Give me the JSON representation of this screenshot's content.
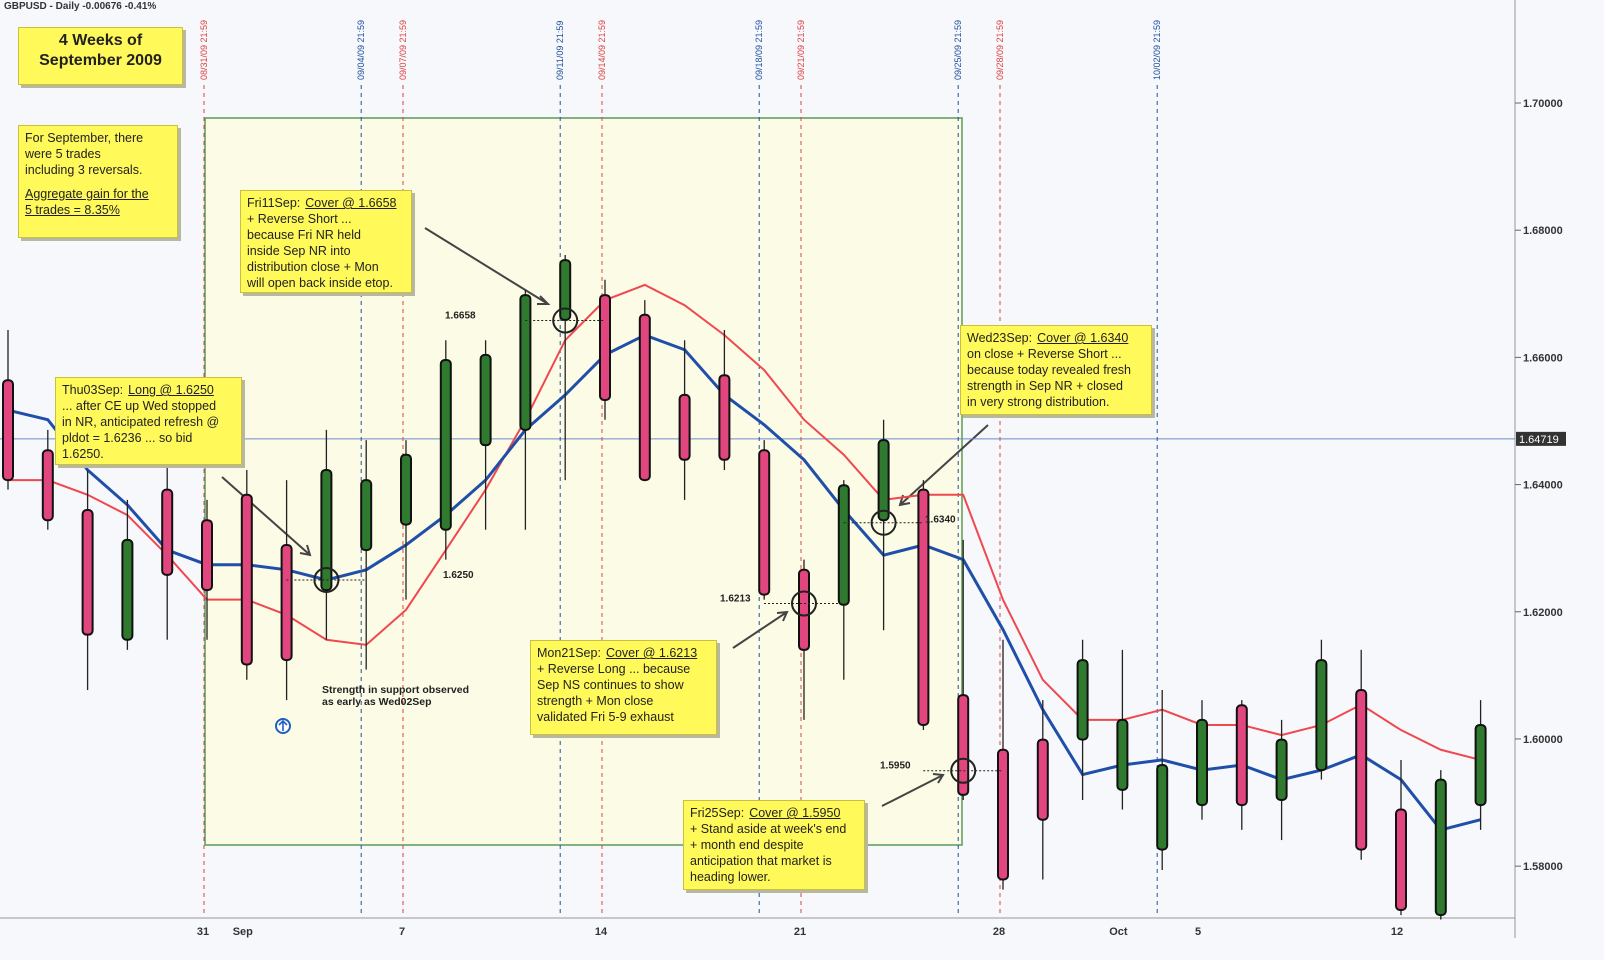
{
  "chart_data": {
    "type": "candlestick",
    "title": "GBPUSD - Daily -0.00676 -0.41%",
    "categories": [
      null,
      null,
      null,
      null,
      null,
      "31",
      "Sep",
      null,
      null,
      null,
      "7",
      null,
      null,
      null,
      null,
      "14",
      null,
      null,
      null,
      null,
      "21",
      null,
      null,
      null,
      null,
      "28",
      null,
      null,
      "Oct",
      null,
      "5",
      null,
      null,
      null,
      null,
      "12",
      null,
      null
    ],
    "open": [
      1.6564,
      1.6454,
      1.636,
      1.6156,
      1.6392,
      1.6344,
      1.6384,
      1.6305,
      1.6234,
      1.6297,
      1.6337,
      1.6329,
      1.6462,
      1.6486,
      1.6659,
      1.6698,
      1.6667,
      1.6541,
      1.6572,
      1.6454,
      1.6266,
      1.6211,
      1.6344,
      1.6392,
      1.6069,
      1.5983,
      1.5999,
      1.5999,
      1.592,
      1.5826,
      1.5896,
      1.6053,
      1.5904,
      1.5951,
      1.6077,
      1.5889,
      1.5723,
      1.5896
    ],
    "high": [
      1.6643,
      1.6486,
      1.6423,
      1.6376,
      1.6439,
      1.6376,
      1.6423,
      1.6407,
      1.6486,
      1.647,
      1.647,
      1.6627,
      1.6627,
      1.6706,
      1.6761,
      1.6722,
      1.669,
      1.6627,
      1.6643,
      1.647,
      1.6282,
      1.6407,
      1.6502,
      1.6407,
      1.6313,
      1.6156,
      1.6061,
      1.6156,
      1.614,
      1.6077,
      1.6061,
      1.6061,
      1.603,
      1.6156,
      1.614,
      1.5967,
      1.5951,
      1.6061
    ],
    "low": [
      1.6392,
      1.6329,
      1.6077,
      1.614,
      1.6156,
      1.6156,
      1.6093,
      1.6061,
      1.6156,
      1.6109,
      1.6219,
      1.6282,
      1.6329,
      1.6329,
      1.6407,
      1.6502,
      1.6407,
      1.6376,
      1.6423,
      1.6219,
      1.603,
      1.6093,
      1.6171,
      1.6014,
      1.5904,
      1.5763,
      1.5779,
      1.5904,
      1.5889,
      1.5794,
      1.5873,
      1.5857,
      1.5841,
      1.5936,
      1.581,
      1.5723,
      1.5716,
      1.5857
    ],
    "close": [
      1.6407,
      1.6344,
      1.6164,
      1.6313,
      1.6258,
      1.6234,
      1.6117,
      1.6124,
      1.6423,
      1.6407,
      1.6447,
      1.6596,
      1.6604,
      1.6698,
      1.6753,
      1.6533,
      1.6407,
      1.6439,
      1.6439,
      1.6227,
      1.614,
      1.6399,
      1.647,
      1.6022,
      1.5912,
      1.5779,
      1.5873,
      1.6124,
      1.603,
      1.5959,
      1.603,
      1.5896,
      1.5999,
      1.6124,
      1.5826,
      1.5731,
      1.5936,
      1.6022
    ],
    "up_color": "#2f7a2f",
    "down_color": "#e2467f",
    "overlays": [
      {
        "color": "#f0484f",
        "values": [
          1.6407,
          1.6407,
          1.6384,
          1.6352,
          1.6289,
          1.6219,
          1.6219,
          1.6195,
          1.6156,
          1.6148,
          1.6203,
          1.6297,
          1.6392,
          1.6502,
          1.6627,
          1.669,
          1.6714,
          1.6682,
          1.6635,
          1.658,
          1.6502,
          1.6447,
          1.6376,
          1.6384,
          1.6384,
          1.6219,
          1.6093,
          1.603,
          1.603,
          1.6046,
          1.6022,
          1.6022,
          1.6006,
          1.6022,
          1.6054,
          1.6014,
          1.5983,
          1.5967
        ]
      },
      {
        "color": "#1f4fa8",
        "values": [
          1.6517,
          1.6502,
          1.6423,
          1.6368,
          1.6297,
          1.6274,
          1.6274,
          1.6266,
          1.625,
          1.6266,
          1.6305,
          1.6352,
          1.6407,
          1.6486,
          1.6541,
          1.6604,
          1.6635,
          1.6612,
          1.6541,
          1.6494,
          1.6439,
          1.636,
          1.6289,
          1.6305,
          1.6282,
          1.6172,
          1.6046,
          1.5944,
          1.5959,
          1.5967,
          1.5951,
          1.5959,
          1.5936,
          1.5951,
          1.5975,
          1.5936,
          1.5857,
          1.5873
        ]
      }
    ],
    "ylim": [
      1.5687,
      1.7162
    ],
    "yticks": [
      {
        "value": 1.58,
        "label": "1.58000"
      },
      {
        "value": 1.6,
        "label": "1.60000"
      },
      {
        "value": 1.62,
        "label": "1.62000"
      },
      {
        "value": 1.64,
        "label": "1.64000"
      },
      {
        "value": 1.66,
        "label": "1.66000"
      },
      {
        "value": 1.68,
        "label": "1.68000"
      },
      {
        "value": 1.7,
        "label": "1.70000"
      }
    ],
    "current_price": 1.64719,
    "date_markers": [
      {
        "text": "08/31/09 21:59",
        "color": "#e04040"
      },
      {
        "text": "09/04/09 21:59",
        "color": "#2050a0"
      },
      {
        "text": "09/07/09 21:59",
        "color": "#e04040"
      },
      {
        "text": "09/11/09 21:59",
        "color": "#2050a0"
      },
      {
        "text": "09/14/09 21:59",
        "color": "#e04040"
      },
      {
        "text": "09/18/09 21:59",
        "color": "#2050a0"
      },
      {
        "text": "09/21/09 21:59",
        "color": "#e04040"
      },
      {
        "text": "09/25/09 21:59",
        "color": "#2050a0"
      },
      {
        "text": "09/28/09 21:59",
        "color": "#e04040"
      },
      {
        "text": "10/02/09 21:59",
        "color": "#2050a0"
      }
    ],
    "levels": [
      1.6658,
      {
        "value": 1.625,
        "label": "1.6250"
      },
      1.6213,
      {
        "value": 1.634,
        "label": "1.6340"
      },
      {
        "value": 1.595,
        "label": "1.5950"
      }
    ],
    "heading": [
      "4 Weeks of",
      "September 2009"
    ],
    "summary": {
      "lines": [
        "For September, there",
        "were 5 trades",
        "including 3 reversals."
      ],
      "emphasis": [
        "Aggregate gain for the",
        "5 trades = 8.35%"
      ]
    },
    "notes": [
      {
        "day": "Fri11Sep:",
        "trade": "Cover @ 1.6658",
        "lines": [
          "+ Reverse Short ...",
          "because Fri NR held",
          "inside  Sep NR into",
          "distribution close + Mon",
          "will open back inside etop."
        ]
      },
      {
        "day": "Thu03Sep:",
        "trade": "Long @ 1.6250",
        "lines": [
          "... after CE up Wed stopped",
          "in NR, anticipated refresh @",
          "pldot = 1.6236 ... so bid",
          "1.6250."
        ]
      },
      {
        "day": "Wed23Sep:",
        "trade": "Cover @ 1.6340",
        "lines": [
          "on close + Reverse Short ...",
          "because today revealed fresh",
          "strength in Sep NR + closed",
          "in very strong distribution."
        ]
      },
      {
        "day": "Mon21Sep:",
        "trade": "Cover @ 1.6213",
        "lines": [
          "+ Reverse Long ... because",
          "Sep NS continues to show",
          "strength + Mon close",
          "validated Fri 5-9 exhaust"
        ]
      },
      {
        "day": "Fri25Sep:",
        "trade": "Cover @ 1.5950",
        "lines": [
          "+ Stand aside at week's end",
          "+ month end despite",
          "anticipation that market is",
          "heading lower."
        ]
      }
    ],
    "support_note": [
      "Strength in support observed",
      "as early as Wed02Sep"
    ]
  }
}
